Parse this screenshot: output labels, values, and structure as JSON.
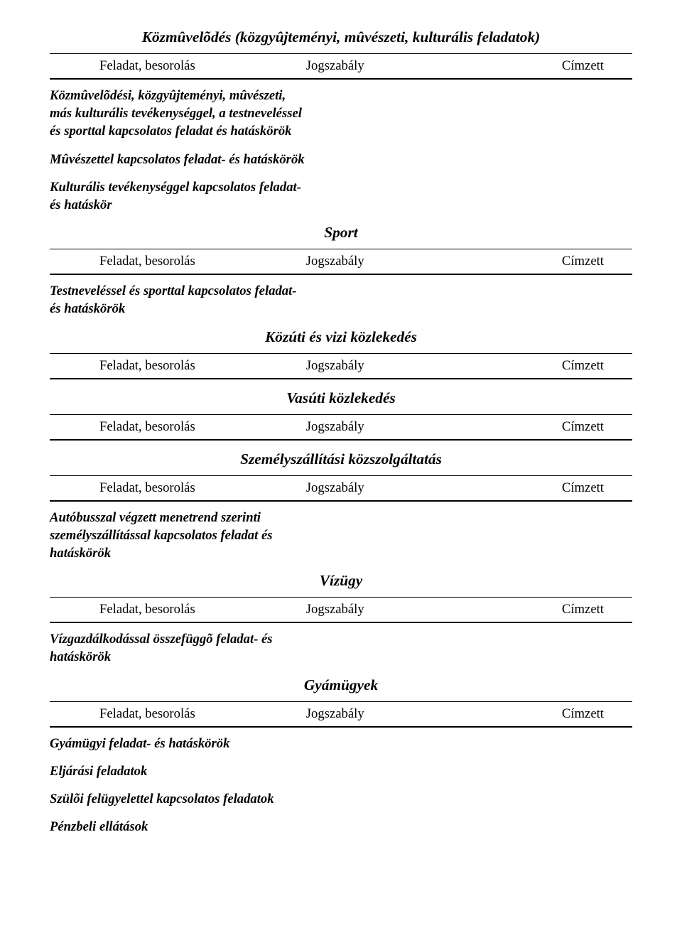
{
  "typography": {
    "title_fontsize_pt": 16,
    "header_fontsize_pt": 14,
    "body_fontsize_pt": 14,
    "font_family": "Times New Roman",
    "title_style": "italic bold",
    "body_style": "italic bold",
    "header_style": "normal"
  },
  "colors": {
    "text": "#000000",
    "background": "#ffffff",
    "rule": "#000000"
  },
  "header": {
    "col1": "Feladat, besorolás",
    "col2": "Jogszabály",
    "col3": "Címzett"
  },
  "sections": [
    {
      "title": "Közmûvelõdés (közgyûjteményi, mûvészeti, kulturális feladatok)",
      "items": [
        "Közmûvelõdési, közgyûjteményi, mûvészeti, más kulturális tevékenységgel, a testneveléssel és sporttal kapcsolatos feladat és hatáskörök",
        "Mûvészettel kapcsolatos feladat- és hatáskörök",
        "Kulturális tevékenységgel kapcsolatos feladat- és hatáskör"
      ]
    },
    {
      "title": "Sport",
      "items": [
        "Testneveléssel és sporttal kapcsolatos feladat- és hatáskörök"
      ]
    },
    {
      "title": "Közúti és vizi közlekedés",
      "items": []
    },
    {
      "title": "Vasúti közlekedés",
      "items": []
    },
    {
      "title": "Személyszállítási közszolgáltatás",
      "items": [
        "Autóbusszal végzett menetrend szerinti személyszállítással kapcsolatos feladat és hatáskörök"
      ]
    },
    {
      "title": "Vízügy",
      "items": [
        "Vízgazdálkodással összefüggõ feladat- és hatáskörök"
      ]
    },
    {
      "title": "Gyámügyek",
      "items": [
        "Gyámügyi feladat- és hatáskörök",
        "Eljárási feladatok",
        "Szülõi felügyelettel kapcsolatos feladatok",
        "Pénzbeli ellátások"
      ]
    }
  ]
}
